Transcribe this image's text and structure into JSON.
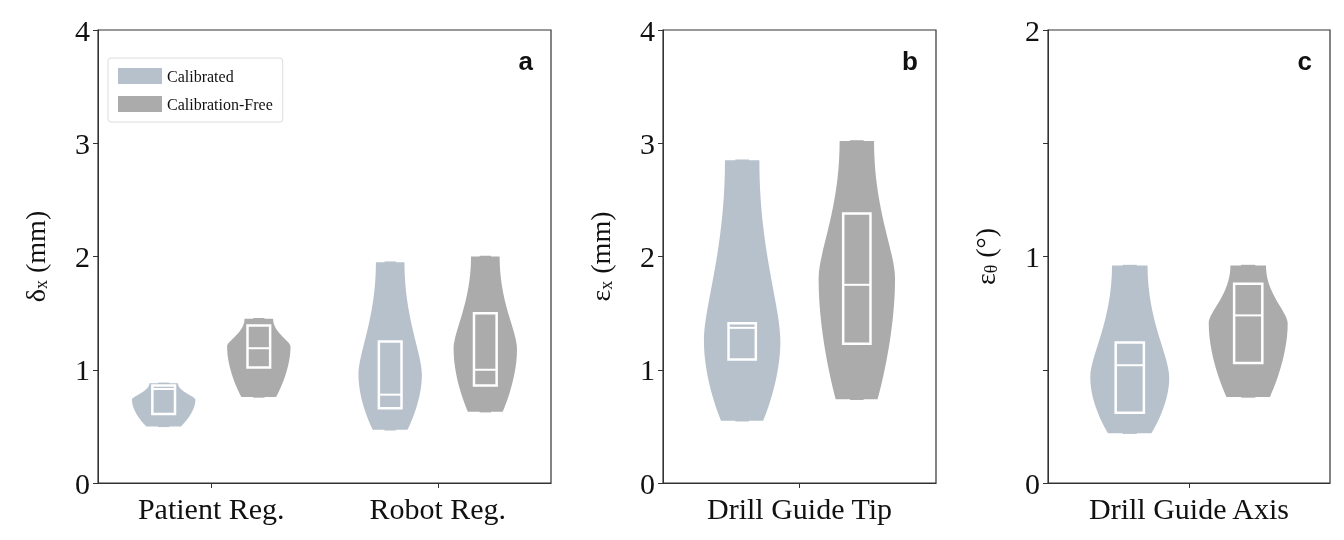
{
  "chart_data": [
    {
      "type": "box",
      "ylabel": "δ$_{x}$ (mm)",
      "categories": [
        "Patient Reg.",
        "Robot Reg."
      ],
      "ylim": [
        0,
        4
      ],
      "yticks": [
        0,
        1,
        2,
        3,
        4
      ],
      "grid": false,
      "legend": "top left",
      "annotations": [
        "a"
      ],
      "series": [
        {
          "name": "Calibrated",
          "color": "#b7c1cb",
          "boxes": [
            {
              "low": 0.5,
              "q1": 0.61,
              "median": 0.83,
              "q3": 0.86,
              "high": 0.88
            },
            {
              "low": 0.47,
              "q1": 0.66,
              "median": 0.78,
              "q3": 1.25,
              "high": 1.95
            }
          ]
        },
        {
          "name": "Calibration-Free",
          "color": "#ababab",
          "boxes": [
            {
              "low": 0.76,
              "q1": 1.02,
              "median": 1.19,
              "q3": 1.39,
              "high": 1.45
            },
            {
              "low": 0.63,
              "q1": 0.86,
              "median": 1.0,
              "q3": 1.5,
              "high": 2.0
            }
          ]
        }
      ]
    },
    {
      "type": "box",
      "ylabel": "ε$_{x}$ (mm)",
      "categories": [
        "Drill Guide Tip"
      ],
      "ylim": [
        0,
        4
      ],
      "yticks": [
        0,
        1,
        2,
        3,
        4
      ],
      "grid": false,
      "annotations": [
        "b"
      ],
      "series": [
        {
          "color": "#b7c1cb",
          "boxes": [
            {
              "low": 0.55,
              "q1": 1.09,
              "median": 1.37,
              "q3": 1.41,
              "high": 2.85
            }
          ]
        },
        {
          "color": "#ababab",
          "boxes": [
            {
              "low": 0.74,
              "q1": 1.23,
              "median": 1.75,
              "q3": 2.38,
              "high": 3.02
            }
          ]
        }
      ]
    },
    {
      "type": "box",
      "ylabel": "ε$_{θ}$ (°)",
      "categories": [
        "Drill Guide Axis"
      ],
      "ylim": [
        0,
        2
      ],
      "yticks": [
        0,
        {
          "value": 0.5,
          "label": null
        },
        1,
        {
          "value": 1.5,
          "label": null
        },
        2
      ],
      "grid": false,
      "annotations": [
        "c"
      ],
      "series": [
        {
          "color": "#b7c1cb",
          "boxes": [
            {
              "low": 0.22,
              "q1": 0.31,
              "median": 0.52,
              "q3": 0.62,
              "high": 0.96
            }
          ]
        },
        {
          "color": "#ababab",
          "boxes": [
            {
              "low": 0.38,
              "q1": 0.53,
              "median": 0.74,
              "q3": 0.88,
              "high": 0.96
            }
          ]
        }
      ]
    }
  ]
}
